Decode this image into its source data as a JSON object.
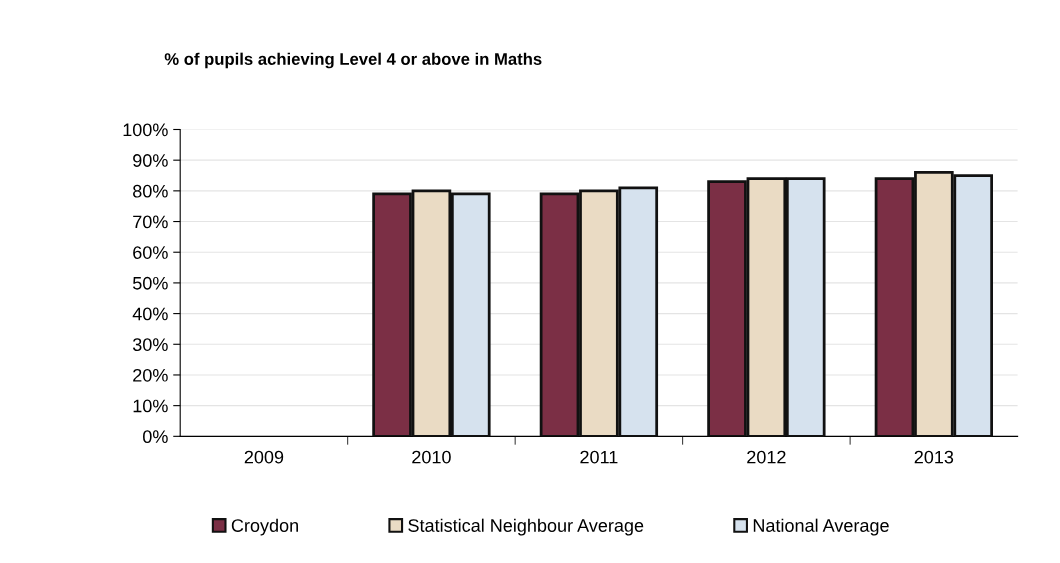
{
  "chart_data": {
    "type": "bar",
    "title": "% of pupils achieving Level 4 or above in Maths",
    "categories": [
      "2009",
      "2010",
      "2011",
      "2012",
      "2013"
    ],
    "series": [
      {
        "name": "Croydon",
        "color": "#7b2f45",
        "values": [
          null,
          79,
          79,
          83,
          84
        ]
      },
      {
        "name": "Statistical Neighbour Average",
        "color": "#eadbc4",
        "values": [
          null,
          80,
          80,
          84,
          86
        ]
      },
      {
        "name": "National Average",
        "color": "#d6e2ee",
        "values": [
          null,
          79,
          81,
          84,
          85
        ]
      }
    ],
    "ylim": [
      0,
      100
    ],
    "yticks": [
      {
        "value": 0,
        "label": "0%"
      },
      {
        "value": 10,
        "label": "10%"
      },
      {
        "value": 20,
        "label": "20%"
      },
      {
        "value": 30,
        "label": "30%"
      },
      {
        "value": 40,
        "label": "40%"
      },
      {
        "value": 50,
        "label": "50%"
      },
      {
        "value": 60,
        "label": "60%"
      },
      {
        "value": 70,
        "label": "70%"
      },
      {
        "value": 80,
        "label": "80%"
      },
      {
        "value": 90,
        "label": "90%"
      },
      {
        "value": 100,
        "label": "100%"
      }
    ],
    "grid": "y",
    "legend": "bottom"
  }
}
